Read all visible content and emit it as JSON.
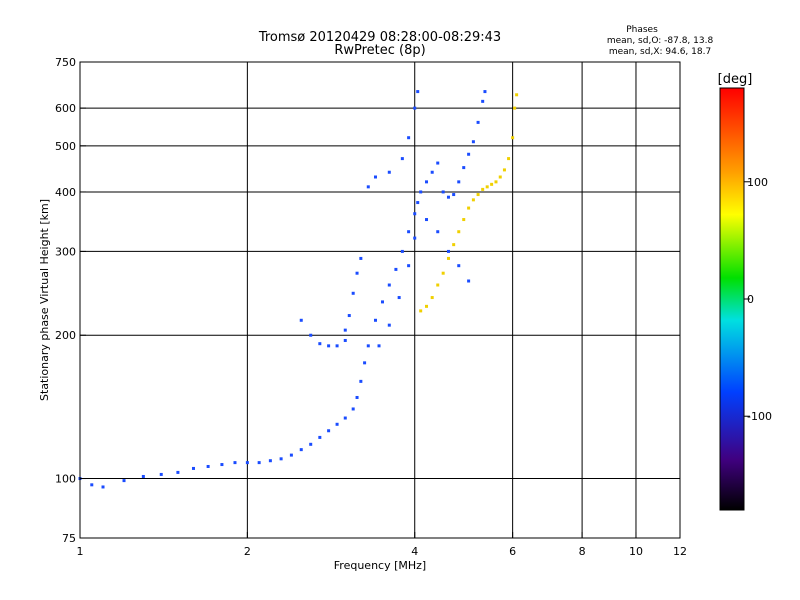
{
  "chart_data": {
    "type": "scatter",
    "title": "Tromsø 20120429 08:28:00-08:29:43",
    "subtitle": "RwPretec (8p)",
    "xlabel": "Frequency [MHz]",
    "ylabel": "Stationary phase Virtual Height [km]",
    "x_scale": "log",
    "y_scale": "log",
    "xlim": [
      1,
      12
    ],
    "ylim": [
      75,
      750
    ],
    "x_ticks": [
      1,
      2,
      4,
      6,
      8,
      10,
      12
    ],
    "x_tick_labels": [
      "1",
      "2",
      "4",
      "6",
      "8",
      "10",
      "12"
    ],
    "x_grid": [
      2,
      4,
      6,
      8,
      10
    ],
    "y_ticks": [
      75,
      100,
      200,
      300,
      400,
      500,
      600,
      750
    ],
    "y_tick_labels": [
      "75",
      "100",
      "200",
      "300",
      "400",
      "500",
      "600",
      "750"
    ],
    "y_grid": [
      100,
      200,
      300,
      400,
      500,
      600
    ],
    "grid": true,
    "legend": {
      "title": "Phases",
      "line1": "mean, sd,O: -87.8, 13.8",
      "line2": "mean, sd,X:  94.6, 18.7",
      "placement": "top-right"
    },
    "colorbar": {
      "label": "[deg]",
      "range": [
        -180,
        180
      ],
      "ticks": [
        100,
        0,
        -100
      ],
      "tick_labels": [
        "100",
        "0",
        "-100"
      ]
    },
    "series": [
      {
        "name": "O",
        "phase": -85,
        "x": [
          1.0,
          1.05,
          1.1,
          1.2,
          1.3,
          1.4,
          1.5,
          1.6,
          1.7,
          1.8,
          1.9,
          2.0,
          2.1,
          2.2,
          2.3,
          2.4,
          2.5,
          2.6,
          2.7,
          2.8,
          2.9,
          3.0,
          3.1,
          3.15,
          3.2,
          3.25,
          3.3,
          3.4,
          3.5,
          3.6,
          3.7,
          3.8,
          3.9,
          4.0,
          4.05,
          4.1,
          4.2,
          4.3,
          4.4,
          4.5,
          4.6,
          4.7,
          4.8,
          4.9,
          5.0,
          5.1,
          5.2,
          5.3,
          5.35,
          3.3,
          3.4,
          3.6,
          3.8,
          3.9,
          4.0,
          4.05,
          2.5,
          2.6,
          2.7,
          2.8,
          2.9,
          3.0,
          3.0,
          3.05,
          3.1,
          3.15,
          3.2,
          3.45,
          3.6,
          3.75,
          3.9,
          4.0,
          4.2,
          4.4,
          4.6,
          4.8,
          5.0
        ],
        "y": [
          100,
          97,
          96,
          99,
          101,
          102,
          103,
          105,
          106,
          107,
          108,
          108,
          108,
          109,
          110,
          112,
          115,
          118,
          122,
          126,
          130,
          134,
          140,
          148,
          160,
          175,
          190,
          215,
          235,
          255,
          275,
          300,
          330,
          360,
          380,
          400,
          420,
          440,
          460,
          400,
          390,
          395,
          420,
          450,
          480,
          510,
          560,
          620,
          650,
          410,
          430,
          440,
          470,
          520,
          600,
          650,
          215,
          200,
          192,
          190,
          190,
          195,
          205,
          220,
          245,
          270,
          290,
          190,
          210,
          240,
          280,
          320,
          350,
          330,
          300,
          280,
          260
        ]
      },
      {
        "name": "X",
        "phase": 95,
        "x": [
          4.1,
          4.2,
          4.3,
          4.4,
          4.5,
          4.6,
          4.7,
          4.8,
          4.9,
          5.0,
          5.1,
          5.2,
          5.3,
          5.4,
          5.5,
          5.6,
          5.7,
          5.8,
          5.9,
          6.0,
          6.05,
          6.1
        ],
        "y": [
          225,
          230,
          240,
          255,
          270,
          290,
          310,
          330,
          350,
          370,
          385,
          395,
          405,
          410,
          415,
          420,
          430,
          445,
          470,
          520,
          600,
          640
        ]
      }
    ]
  }
}
